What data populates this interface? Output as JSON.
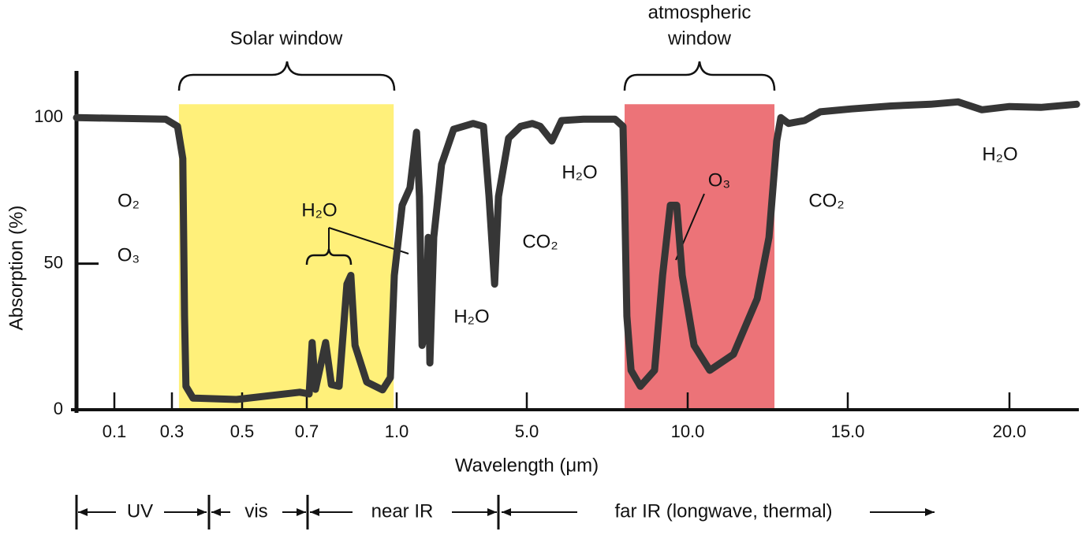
{
  "chart_data": {
    "type": "line",
    "x_label": "Wavelength (μm)",
    "y_label": "Absorption (%)",
    "xlim": [
      0,
      22.1
    ],
    "xticks": [
      0.1,
      0.3,
      0.5,
      0.7,
      {
        "value": 1,
        "label": "1.0"
      },
      {
        "value": 5,
        "label": "5.0"
      },
      {
        "value": 10,
        "label": "10.0"
      },
      {
        "value": 15,
        "label": "15.0"
      },
      {
        "value": 20,
        "label": "20.0"
      }
    ],
    "ylim": [
      0,
      116
    ],
    "yticks": [
      0,
      50,
      100
    ],
    "color": "#363636",
    "x": [
      0,
      0.278,
      0.316,
      0.331,
      0.336,
      0.34,
      0.36,
      0.484,
      0.678,
      0.708,
      0.718,
      0.729,
      0.763,
      0.782,
      0.808,
      0.834,
      0.847,
      0.861,
      0.9,
      0.953,
      0.979,
      0.992,
      1.17,
      1.41,
      1.61,
      1.7,
      1.78,
      1.9,
      1.97,
      2.02,
      2.14,
      2.38,
      2.75,
      3.35,
      3.67,
      3.84,
      4.01,
      4.13,
      4.44,
      4.81,
      5.17,
      5.42,
      5.78,
      6.08,
      6.76,
      7.74,
      7.99,
      8.04,
      8.11,
      8.24,
      8.53,
      8.97,
      9.22,
      9.46,
      9.66,
      9.83,
      10.2,
      10.69,
      11.43,
      12.17,
      12.54,
      12.78,
      12.91,
      13.15,
      13.65,
      14.14,
      15.12,
      16.34,
      17.56,
      18.41,
      19.15,
      20,
      20.95,
      22.03
    ],
    "values": [
      100,
      99.5,
      97,
      86,
      32,
      8,
      4,
      3.5,
      6,
      5.4,
      23,
      7,
      23,
      8.6,
      8,
      43,
      46,
      22,
      9.5,
      6.8,
      11,
      46,
      70,
      76,
      95,
      73,
      22,
      27,
      59,
      16,
      59,
      84,
      96,
      98,
      97,
      73,
      43,
      73,
      93,
      97,
      98,
      97,
      92,
      99,
      99.5,
      99.5,
      97,
      73,
      32,
      13.5,
      8,
      13.5,
      46,
      70,
      70,
      46,
      22,
      13.5,
      19,
      38,
      59,
      92,
      100,
      98,
      99,
      102,
      103,
      104,
      104.6,
      105.4,
      102.7,
      103.8,
      103.5,
      104.6
    ],
    "regions": [
      {
        "label": [
          "Solar window"
        ],
        "x": [
          0.32,
          0.99
        ],
        "top": 104.6,
        "color": "#fff07a"
      },
      {
        "label": [
          "atmospheric",
          "window"
        ],
        "x": [
          8.04,
          12.71
        ],
        "top": 104.6,
        "color": "#ec7378"
      }
    ],
    "annotations": [
      "O₂",
      "O₃",
      "H₂O",
      "H₂O",
      "CO₂",
      "H₂O",
      "O₃",
      "CO₂",
      "H₂O"
    ],
    "bands": [
      "UV",
      "vis",
      "near IR",
      "far IR (longwave, thermal)"
    ]
  }
}
